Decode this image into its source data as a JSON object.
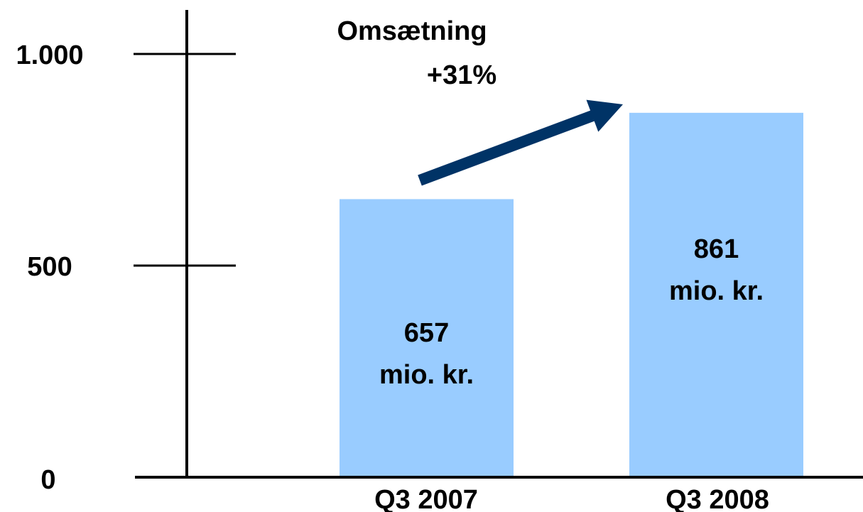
{
  "chart_data": {
    "type": "bar",
    "title": "Omsætning",
    "annotation": "+31%",
    "categories": [
      "Q3 2007",
      "Q3 2008"
    ],
    "values": [
      657,
      861
    ],
    "value_labels": [
      [
        "657",
        "mio. kr."
      ],
      [
        "861",
        "mio. kr."
      ]
    ],
    "unit": "mio. kr.",
    "yticks": [
      0,
      500,
      1000
    ],
    "ytick_labels": [
      "0",
      "500",
      "1.000"
    ],
    "ylim": [
      0,
      1000
    ],
    "xlabel": "",
    "ylabel": "",
    "grid": false,
    "legend": "none",
    "colors": {
      "bar": "#99CCFF",
      "arrow": "#003366",
      "axis": "#000000"
    }
  }
}
